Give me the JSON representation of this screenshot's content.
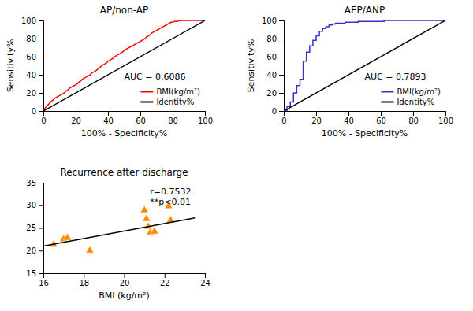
{
  "chart_data": [
    {
      "type": "line",
      "title": "AP/non-AP",
      "x_label": "100% - Specificity%",
      "y_label": "Sensitivity%",
      "xlim": [
        0,
        100
      ],
      "ylim": [
        0,
        100
      ],
      "xticks": [
        0,
        20,
        40,
        60,
        80,
        100
      ],
      "yticks": [
        0,
        20,
        40,
        60,
        80,
        100
      ],
      "legend": "lower right",
      "annotations": [
        "AUC = 0.6086"
      ],
      "series": [
        {
          "name": "BMI(kg/m²)",
          "color": "#FF0000",
          "x": [
            0,
            1,
            2,
            3,
            4,
            5,
            6,
            7,
            8,
            9,
            10,
            11,
            12,
            13,
            14,
            15,
            16,
            17,
            18,
            19,
            20,
            21,
            22,
            23,
            24,
            25,
            26,
            27,
            28,
            29,
            30,
            31,
            32,
            33,
            34,
            35,
            36,
            37,
            38,
            39,
            40,
            41,
            42,
            43,
            44,
            45,
            46,
            47,
            48,
            49,
            50,
            51,
            52,
            53,
            54,
            55,
            56,
            57,
            58,
            59,
            60,
            61,
            62,
            63,
            64,
            65,
            66,
            67,
            68,
            69,
            70,
            71,
            72,
            73,
            74,
            75,
            76,
            77,
            78,
            79,
            80,
            81,
            82,
            83,
            84,
            85,
            86,
            87,
            88,
            89,
            90,
            91,
            92,
            93,
            94,
            95,
            96,
            97,
            98,
            99,
            100
          ],
          "values": [
            0,
            3,
            5,
            7,
            9,
            11,
            12,
            14,
            15,
            16,
            17,
            18,
            19,
            20,
            22,
            23,
            25,
            26,
            27,
            28,
            29,
            30,
            32,
            33,
            35,
            36,
            37,
            38,
            39,
            40,
            42,
            43,
            44,
            45,
            47,
            48,
            50,
            51,
            52,
            53,
            55,
            56,
            57,
            58,
            60,
            61,
            62,
            63,
            64,
            65,
            67,
            68,
            69,
            70,
            71,
            72,
            73,
            74,
            75,
            76,
            77,
            78,
            79,
            80,
            82,
            83,
            84,
            86,
            87,
            88,
            89,
            90,
            91,
            92,
            93,
            94,
            95,
            96,
            97,
            98,
            98,
            99,
            99,
            99,
            100,
            100,
            100,
            100,
            100,
            100,
            100,
            100,
            100,
            100,
            100,
            100,
            100,
            100,
            100,
            100,
            100
          ]
        },
        {
          "name": "Identity%",
          "color": "#000000",
          "x": [
            0,
            100
          ],
          "values": [
            0,
            100
          ]
        }
      ]
    },
    {
      "type": "line",
      "title": "AEP/ANP",
      "x_label": "100% - Specificity%",
      "y_label": "Sensitivity%",
      "xlim": [
        0,
        100
      ],
      "ylim": [
        0,
        100
      ],
      "xticks": [
        0,
        20,
        40,
        60,
        80,
        100
      ],
      "yticks": [
        0,
        20,
        40,
        60,
        80,
        100
      ],
      "legend": "lower right",
      "annotations": [
        "AUC = 0.7893"
      ],
      "series": [
        {
          "name": "BMI(kg/m²)",
          "color": "#3333CC",
          "type": "step",
          "x": [
            0,
            2,
            4,
            6,
            8,
            10,
            12,
            14,
            16,
            18,
            20,
            22,
            24,
            26,
            28,
            30,
            32,
            34,
            36,
            38,
            40,
            42,
            44,
            46,
            48,
            50,
            52,
            54,
            56,
            58,
            60,
            62,
            64,
            66,
            68,
            70,
            72,
            74,
            76,
            78,
            80,
            82,
            84,
            86,
            88,
            90,
            92,
            94,
            96,
            98,
            100
          ],
          "values": [
            0,
            5,
            10,
            20,
            28,
            35,
            55,
            65,
            72,
            78,
            83,
            88,
            91,
            93,
            95,
            96,
            97,
            97,
            97,
            98,
            98,
            98,
            98,
            99,
            99,
            99,
            99,
            99,
            99,
            99,
            99,
            100,
            100,
            100,
            100,
            100,
            100,
            100,
            100,
            100,
            100,
            100,
            100,
            100,
            100,
            100,
            100,
            100,
            100,
            100,
            100
          ]
        },
        {
          "name": "Identity%",
          "color": "#000000",
          "x": [
            0,
            100
          ],
          "values": [
            0,
            100
          ]
        }
      ]
    },
    {
      "type": "scatter",
      "title": "Recurrence after discharge",
      "x_label": "BMI (kg/m²)",
      "xlim": [
        16,
        24
      ],
      "ylim": [
        15,
        35
      ],
      "xticks": [
        16,
        18,
        20,
        22,
        24
      ],
      "yticks": [
        15,
        20,
        25,
        30,
        35
      ],
      "annotations": [
        "r=0.7532",
        "**p<0.01"
      ],
      "series": [
        {
          "color": "#FF8C00",
          "marker": "triangle",
          "x": [
            16.5,
            17.0,
            17.2,
            18.3,
            21.0,
            21.1,
            21.2,
            21.3,
            21.5,
            22.2,
            22.3
          ],
          "values": [
            21.3,
            22.5,
            22.8,
            20.0,
            28.9,
            27.0,
            25.3,
            24.0,
            24.2,
            29.8,
            26.7
          ]
        },
        {
          "type": "line",
          "color": "#000000",
          "x": [
            16.0,
            23.5
          ],
          "values": [
            21.0,
            27.2
          ]
        }
      ]
    }
  ]
}
